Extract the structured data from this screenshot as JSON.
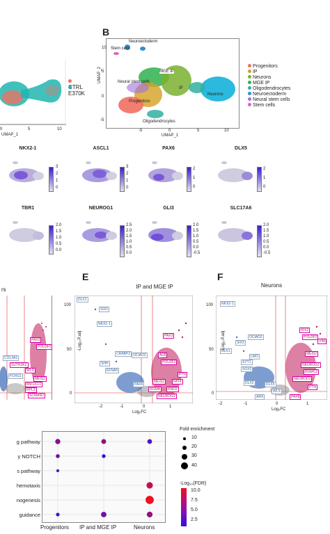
{
  "panelA": {
    "legend": [
      "CTRL",
      "E370K"
    ],
    "legend_colors": [
      "#f07060",
      "#21b5b0"
    ],
    "x_ticks": [
      "0",
      "5",
      "10"
    ],
    "x_label": "UMAP_1"
  },
  "panelB": {
    "letter": "B",
    "legend": [
      {
        "label": "Progenitors",
        "color": "#f07060"
      },
      {
        "label": "IP",
        "color": "#d4a020"
      },
      {
        "label": "Neurons",
        "color": "#7ab030"
      },
      {
        "label": "MGE IP",
        "color": "#30b050"
      },
      {
        "label": "Oligodendrocytes",
        "color": "#30b0a0"
      },
      {
        "label": "Neuroectoderm",
        "color": "#3090d0"
      },
      {
        "label": "Neural stem cells",
        "color": "#a070e0"
      },
      {
        "label": "Stem cells",
        "color": "#e060c0"
      }
    ],
    "annotations": [
      "Neuroectoderm",
      "Stem cells",
      "MGE IP",
      "Neural stem cells",
      "IP",
      "Progenitors",
      "Neurons",
      "Oligodendrocytes"
    ],
    "x_ticks": [
      "-5",
      "0",
      "5",
      "10"
    ],
    "y_ticks": [
      "10",
      "5",
      "0",
      "-5"
    ],
    "x_label": "UMAP_1",
    "y_label": "UMAP_2"
  },
  "features_row1": [
    {
      "gene": "NKX2-1",
      "ticks": [
        "3",
        "2",
        "1",
        "0"
      ]
    },
    {
      "gene": "ASCL1",
      "ticks": [
        "3",
        "2",
        "1",
        "0"
      ]
    },
    {
      "gene": "PAX6",
      "ticks": [
        "2",
        "1",
        "0"
      ]
    },
    {
      "gene": "DLX5",
      "ticks": [
        "2",
        "1",
        "0"
      ]
    }
  ],
  "features_row2": [
    {
      "gene": "TBR1",
      "ticks": [
        "2.0",
        "1.5",
        "1.0",
        "0.5",
        "0.0"
      ]
    },
    {
      "gene": "NEUROG1",
      "ticks": [
        "2.5",
        "2.0",
        "1.5",
        "1.0",
        "0.5",
        "0.0"
      ]
    },
    {
      "gene": "GLI3",
      "ticks": [
        "2.0",
        "1.5",
        "1.0",
        "0.5",
        "0.0",
        "-0.5"
      ]
    },
    {
      "gene": "SLC17A6",
      "ticks": [
        "2.0",
        "1.5",
        "1.0",
        "0.5",
        "0.0",
        "-0.5"
      ]
    }
  ],
  "volcanoD": {
    "title_fragment": "rs",
    "labels_blue": [
      "COL3A1",
      "FOXG1"
    ],
    "labels_red": [
      "PAX3",
      "POU3F2",
      "SUTR3K2",
      "WLS",
      "MEIS2",
      "BM-ULL1",
      "RPL3",
      "SCMA5D"
    ]
  },
  "volcanoE": {
    "letter": "E",
    "title": "IP and MGE IP",
    "y_ticks": [
      "100",
      "50",
      "0"
    ],
    "x_ticks": [
      "-2",
      "-1",
      "0",
      "1"
    ],
    "x_label": "Log₂FC",
    "y_label": "-Log₁₀P.adj",
    "labels_blue": [
      "DLX1",
      "SIX3",
      "NKX2-1",
      "CRABP2",
      "OCIAD2",
      "SHH",
      "EFNA5",
      "PAX6"
    ],
    "labels_red": [
      "PAX3",
      "ALB",
      "POU3F2",
      "PTN",
      "MEIS2",
      "FAT4",
      "RGMA",
      "RND2",
      "NEUROG2"
    ]
  },
  "volcanoF": {
    "letter": "F",
    "title": "Neurons",
    "y_ticks": [
      "100",
      "50",
      "0"
    ],
    "x_ticks": [
      "-2",
      "-1",
      "0",
      "1"
    ],
    "x_label": "Log₂FC",
    "y_label": "-Log₁₀P.adj",
    "labels_blue": [
      "NKX2-1",
      "OCIAD2",
      "SIX3",
      "DLK1",
      "LMO",
      "SYT1",
      "SOX2",
      "DLX2",
      "ARX",
      "DLX5"
    ],
    "labels_red": [
      "IRX2",
      "POU3F2",
      "VIM",
      "MEIS2",
      "NEUROG2",
      "RGMC3",
      "NEUROD1",
      "PTN",
      "PAX8",
      "WLS"
    ]
  },
  "dotplot": {
    "pathways": [
      "g pathway",
      "y NOTCH",
      "s pathway",
      "hemotaxis",
      "nogenesis",
      "guidance"
    ],
    "categories": [
      "Progenitors",
      "IP and MGE IP",
      "Neurons"
    ],
    "size_legend_title": "Fold enrichment",
    "size_legend": [
      "10",
      "20",
      "30",
      "40"
    ],
    "color_legend_title": "-Log₁₀(FDR)",
    "color_legend": [
      "10.0",
      "7.5",
      "5.0",
      "2.5"
    ]
  },
  "chart_data": {
    "type": "scatter",
    "categories": [
      "Progenitors",
      "IP and MGE IP",
      "Neurons"
    ],
    "series": [
      {
        "name": "g pathway",
        "x": [
          "Progenitors",
          "IP and MGE IP",
          "Neurons"
        ],
        "fold_enrichment": [
          20,
          18,
          17
        ],
        "fdr": [
          6,
          6.5,
          4
        ]
      },
      {
        "name": "y NOTCH",
        "x": [
          "Progenitors",
          "IP and MGE IP"
        ],
        "fold_enrichment": [
          12,
          11
        ],
        "fdr": [
          5,
          3
        ]
      },
      {
        "name": "s pathway",
        "x": [
          "Progenitors"
        ],
        "fold_enrichment": [
          6
        ],
        "fdr": [
          4
        ]
      },
      {
        "name": "hemotaxis",
        "x": [
          "Neurons"
        ],
        "fold_enrichment": [
          28
        ],
        "fdr": [
          8
        ]
      },
      {
        "name": "nogenesis",
        "x": [
          "Neurons"
        ],
        "fold_enrichment": [
          40
        ],
        "fdr": [
          10
        ]
      },
      {
        "name": "guidance",
        "x": [
          "Progenitors",
          "IP and MGE IP",
          "Neurons"
        ],
        "fold_enrichment": [
          10,
          22,
          24
        ],
        "fdr": [
          3,
          5,
          6.5
        ]
      }
    ]
  }
}
